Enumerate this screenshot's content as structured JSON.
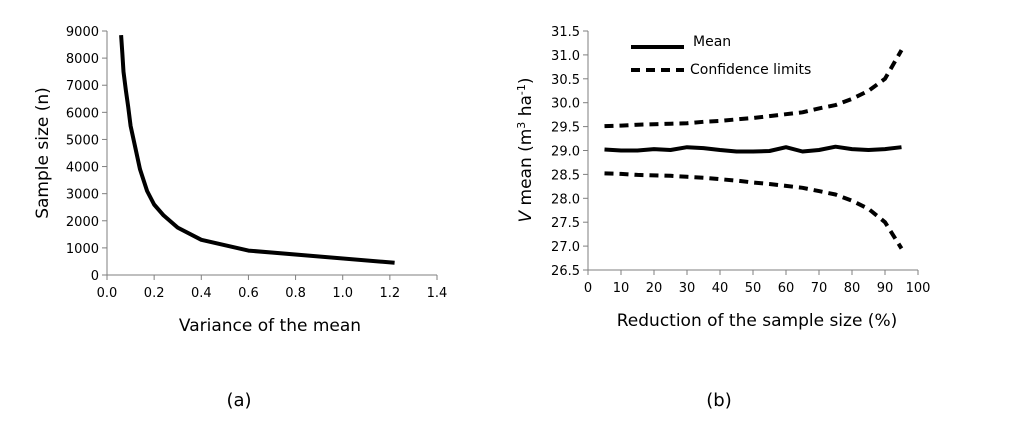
{
  "chart_data": [
    {
      "type": "line",
      "panel_label": "(a)",
      "xlabel": "Variance of the mean",
      "ylabel": "Sample size (n)",
      "xlim": [
        0,
        1.4
      ],
      "ylim": [
        0,
        9000
      ],
      "x_ticks": [
        "0.0",
        "0.2",
        "0.4",
        "0.6",
        "0.8",
        "1.0",
        "1.2",
        "1.4"
      ],
      "y_ticks": [
        "0",
        "1000",
        "2000",
        "3000",
        "4000",
        "5000",
        "6000",
        "7000",
        "8000",
        "9000"
      ],
      "series": [
        {
          "name": "Sample size",
          "style": "solid",
          "x": [
            0.06,
            0.065,
            0.07,
            0.08,
            0.09,
            0.1,
            0.12,
            0.14,
            0.17,
            0.2,
            0.24,
            0.3,
            0.4,
            0.6,
            1.22
          ],
          "y": [
            8850,
            8200,
            7500,
            6800,
            6200,
            5500,
            4700,
            3900,
            3100,
            2600,
            2200,
            1750,
            1300,
            900,
            450
          ]
        }
      ]
    },
    {
      "type": "line",
      "panel_label": "(b)",
      "xlabel": "Reduction of the sample size (%)",
      "ylabel_italic": "V",
      "ylabel_rest": " mean (m",
      "ylabel_sup1": "3",
      "ylabel_mid": " ha",
      "ylabel_sup2": "-1",
      "ylabel_end": ")",
      "xlim": [
        0,
        100
      ],
      "ylim": [
        26.5,
        31.5
      ],
      "x_ticks": [
        "0",
        "10",
        "20",
        "30",
        "40",
        "50",
        "60",
        "70",
        "80",
        "90",
        "100"
      ],
      "y_ticks": [
        "26.5",
        "27.0",
        "27.5",
        "28.0",
        "28.5",
        "29.0",
        "29.5",
        "30.0",
        "30.5",
        "31.0",
        "31.5"
      ],
      "legend": [
        {
          "label": "Mean",
          "style": "solid"
        },
        {
          "label": "Confidence limits",
          "style": "dashed"
        }
      ],
      "series": [
        {
          "name": "Mean",
          "style": "solid",
          "x": [
            5,
            10,
            15,
            20,
            25,
            30,
            35,
            40,
            45,
            50,
            55,
            60,
            65,
            70,
            75,
            80,
            85,
            90,
            95
          ],
          "y": [
            29.02,
            29.0,
            29.0,
            29.03,
            29.01,
            29.07,
            29.05,
            29.01,
            28.98,
            28.98,
            28.99,
            29.07,
            28.98,
            29.01,
            29.08,
            29.03,
            29.01,
            29.03,
            29.07
          ]
        },
        {
          "name": "Upper confidence limit",
          "style": "dashed",
          "x": [
            5,
            10,
            15,
            20,
            25,
            30,
            35,
            40,
            45,
            50,
            55,
            60,
            65,
            70,
            75,
            80,
            85,
            90,
            95
          ],
          "y": [
            29.51,
            29.52,
            29.54,
            29.55,
            29.56,
            29.57,
            29.6,
            29.62,
            29.65,
            29.68,
            29.72,
            29.76,
            29.8,
            29.88,
            29.95,
            30.08,
            30.25,
            30.5,
            31.1
          ]
        },
        {
          "name": "Lower confidence limit",
          "style": "dashed",
          "x": [
            5,
            10,
            15,
            20,
            25,
            30,
            35,
            40,
            45,
            50,
            55,
            60,
            65,
            70,
            75,
            80,
            85,
            90,
            95
          ],
          "y": [
            28.52,
            28.51,
            28.49,
            28.48,
            28.47,
            28.45,
            28.43,
            28.4,
            28.37,
            28.33,
            28.3,
            28.26,
            28.22,
            28.15,
            28.08,
            27.95,
            27.78,
            27.5,
            26.95
          ]
        }
      ]
    }
  ]
}
